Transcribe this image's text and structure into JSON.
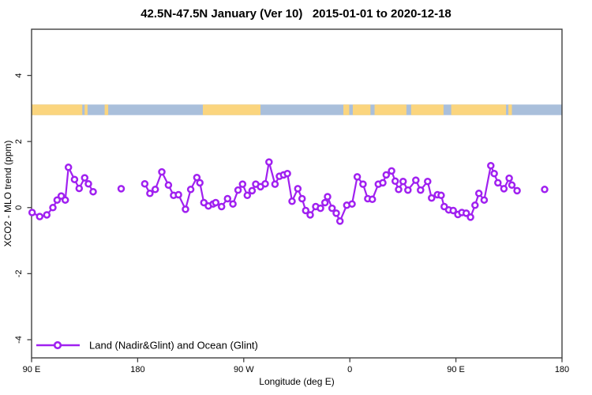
{
  "title": "42.5N-47.5N January (Ver 10)   2015-01-01 to 2020-12-18",
  "chart_data": {
    "type": "line",
    "title": "42.5N-47.5N January (Ver 10)   2015-01-01 to 2020-12-18",
    "xlabel": "Longitude (deg E)",
    "ylabel": "XCO2 - MLO trend (ppm)",
    "xlim": [
      90,
      540
    ],
    "ylim": [
      -4.55,
      5.4
    ],
    "grid": false,
    "x_ticks": [
      {
        "pos": 90,
        "label": "90 E"
      },
      {
        "pos": 180,
        "label": "180"
      },
      {
        "pos": 270,
        "label": "90 W"
      },
      {
        "pos": 360,
        "label": "0"
      },
      {
        "pos": 450,
        "label": "90 E"
      },
      {
        "pos": 540,
        "label": "180"
      }
    ],
    "y_ticks": [
      {
        "pos": -4,
        "label": "-4"
      },
      {
        "pos": -2,
        "label": "-2"
      },
      {
        "pos": 0,
        "label": "0"
      },
      {
        "pos": 2,
        "label": "2"
      },
      {
        "pos": 4,
        "label": "4"
      }
    ],
    "legend": {
      "label": "Land (Nadir&Glint) and Ocean (Glint)",
      "position": "bottom-left"
    },
    "series_color": "#A020F0",
    "marker": "open-circle",
    "map_band": {
      "description": "land/ocean strip for latitude band",
      "value_from": 2.8,
      "value_to": 3.12,
      "ocean_color": "#A9BFDB",
      "land_color": "#FBD57E",
      "land_segments": [
        [
          90,
          133
        ],
        [
          135,
          137.5
        ],
        [
          152,
          155
        ],
        [
          235.3,
          284.2
        ],
        [
          354.5,
          359.5
        ],
        [
          362.5,
          377.5
        ],
        [
          381,
          408
        ],
        [
          412,
          439.5
        ],
        [
          446,
          492.5
        ],
        [
          494.5,
          497.5
        ]
      ]
    },
    "series": [
      {
        "name": "Land (Nadir&Glint) and Ocean (Glint)",
        "segments": [
          [
            [
              90.5,
              -0.15
            ],
            [
              96.9,
              -0.27
            ],
            [
              102.9,
              -0.22
            ],
            [
              108.1,
              0
            ],
            [
              111.7,
              0.23
            ],
            [
              115.2,
              0.35
            ],
            [
              118.6,
              0.23
            ],
            [
              121.3,
              1.22
            ],
            [
              126.4,
              0.85
            ],
            [
              130.4,
              0.58
            ],
            [
              135.1,
              0.9
            ],
            [
              138.2,
              0.72
            ],
            [
              142.2,
              0.48
            ]
          ],
          [
            [
              166,
              0.57
            ]
          ],
          [
            [
              186,
              0.72
            ],
            [
              190.4,
              0.43
            ],
            [
              194.9,
              0.55
            ],
            [
              200.5,
              1.08
            ],
            [
              206.1,
              0.68
            ],
            [
              210.5,
              0.37
            ],
            [
              214.6,
              0.39
            ],
            [
              220.6,
              -0.05
            ],
            [
              225,
              0.55
            ],
            [
              230.2,
              0.91
            ],
            [
              232.8,
              0.75
            ],
            [
              236.2,
              0.15
            ],
            [
              240,
              0.05
            ],
            [
              244,
              0.11
            ],
            [
              246.2,
              0.15
            ],
            [
              251.2,
              0.03
            ],
            [
              256.3,
              0.27
            ],
            [
              260.8,
              0.11
            ],
            [
              265.2,
              0.53
            ],
            [
              269,
              0.71
            ],
            [
              273,
              0.37
            ],
            [
              277.1,
              0.51
            ],
            [
              280.2,
              0.71
            ],
            [
              284.2,
              0.63
            ],
            [
              288.2,
              0.72
            ],
            [
              291.4,
              1.38
            ],
            [
              296.5,
              0.71
            ],
            [
              300.3,
              0.95
            ],
            [
              303.8,
              0.99
            ],
            [
              307,
              1.03
            ],
            [
              311,
              0.19
            ],
            [
              315.9,
              0.57
            ],
            [
              319.5,
              0.27
            ],
            [
              322.6,
              -0.09
            ],
            [
              326.4,
              -0.22
            ],
            [
              331.1,
              0.03
            ],
            [
              335.1,
              -0.02
            ],
            [
              338.9,
              0.15
            ],
            [
              341.1,
              0.33
            ],
            [
              344.9,
              -0.02
            ],
            [
              348.5,
              -0.17
            ],
            [
              351.6,
              -0.41
            ],
            [
              357.4,
              0.07
            ],
            [
              361.9,
              0.11
            ],
            [
              366.3,
              0.93
            ],
            [
              371.2,
              0.71
            ],
            [
              375.2,
              0.27
            ],
            [
              379.1,
              0.25
            ],
            [
              384.2,
              0.71
            ],
            [
              388,
              0.75
            ],
            [
              390.9,
              0.99
            ],
            [
              395.4,
              1.11
            ],
            [
              398.5,
              0.8
            ],
            [
              401.4,
              0.55
            ],
            [
              405.2,
              0.79
            ],
            [
              409.3,
              0.53
            ],
            [
              416,
              0.83
            ],
            [
              420,
              0.53
            ],
            [
              426,
              0.79
            ],
            [
              429.4,
              0.29
            ],
            [
              434.3,
              0.39
            ],
            [
              437.5,
              0.37
            ],
            [
              440.1,
              0.03
            ],
            [
              443.9,
              -0.07
            ],
            [
              447.7,
              -0.09
            ],
            [
              451.7,
              -0.21
            ],
            [
              455,
              -0.15
            ],
            [
              458.8,
              -0.17
            ],
            [
              462.4,
              -0.29
            ],
            [
              466.2,
              0.07
            ],
            [
              469.5,
              0.43
            ],
            [
              474,
              0.23
            ],
            [
              479.6,
              1.27
            ],
            [
              482.5,
              1.03
            ],
            [
              485.6,
              0.75
            ],
            [
              490.7,
              0.57
            ],
            [
              495.2,
              0.89
            ],
            [
              497.5,
              0.68
            ],
            [
              501.9,
              0.51
            ]
          ],
          [
            [
              525.3,
              0.55
            ]
          ]
        ]
      }
    ]
  }
}
